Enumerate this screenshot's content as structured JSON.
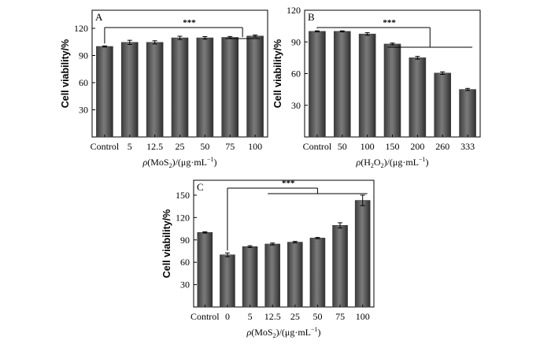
{
  "chart_data": [
    {
      "type": "bar",
      "panel_label": "A",
      "categories": [
        "Control",
        "5",
        "12.5",
        "25",
        "50",
        "75",
        "100"
      ],
      "values": [
        100,
        104.5,
        104.5,
        109.5,
        109.5,
        110,
        111.5
      ],
      "errors": [
        0.6,
        2.3,
        1.8,
        1.8,
        1.4,
        1.0,
        1.1
      ],
      "ylabel": "Cell viability/%",
      "xlabel": {
        "pre": "ρ(MoS",
        "sub": "2",
        "post": ")/(μg·mL",
        "sup": "−1",
        "end": ")"
      },
      "yticks": [
        30,
        60,
        90,
        120
      ],
      "ylim": [
        0,
        140
      ],
      "significance": "***"
    },
    {
      "type": "bar",
      "panel_label": "B",
      "categories": [
        "Control",
        "50",
        "100",
        "150",
        "200",
        "260",
        "333"
      ],
      "values": [
        100,
        100,
        97.5,
        88,
        75,
        60.5,
        45
      ],
      "errors": [
        0.5,
        0.5,
        1.2,
        0.9,
        1.3,
        1.2,
        1.0
      ],
      "ylabel": "Cell viability/%",
      "xlabel": {
        "pre": "ρ(H",
        "sub": "2",
        "post": "O",
        "sub2": "2",
        "post2": ")/(μg·mL",
        "sup": "−1",
        "end": ")"
      },
      "yticks": [
        30,
        60,
        90,
        120
      ],
      "ylim": [
        0,
        120
      ],
      "significance": "***"
    },
    {
      "type": "bar",
      "panel_label": "C",
      "categories": [
        "Control",
        "0",
        "5",
        "12.5",
        "25",
        "50",
        "75",
        "100"
      ],
      "values": [
        100,
        70,
        81,
        84.5,
        87,
        92.5,
        109.5,
        143
      ],
      "errors": [
        0.8,
        2.5,
        1.2,
        1.3,
        1.0,
        0.8,
        3.5,
        7
      ],
      "ylabel": "Cell viability/%",
      "xlabel": {
        "pre": "ρ(MoS",
        "sub": "2",
        "post": ")/(μg·mL",
        "sup": "−1",
        "end": ")"
      },
      "yticks": [
        30,
        60,
        90,
        120,
        150
      ],
      "ylim": [
        0,
        170
      ],
      "significance": "***"
    }
  ]
}
